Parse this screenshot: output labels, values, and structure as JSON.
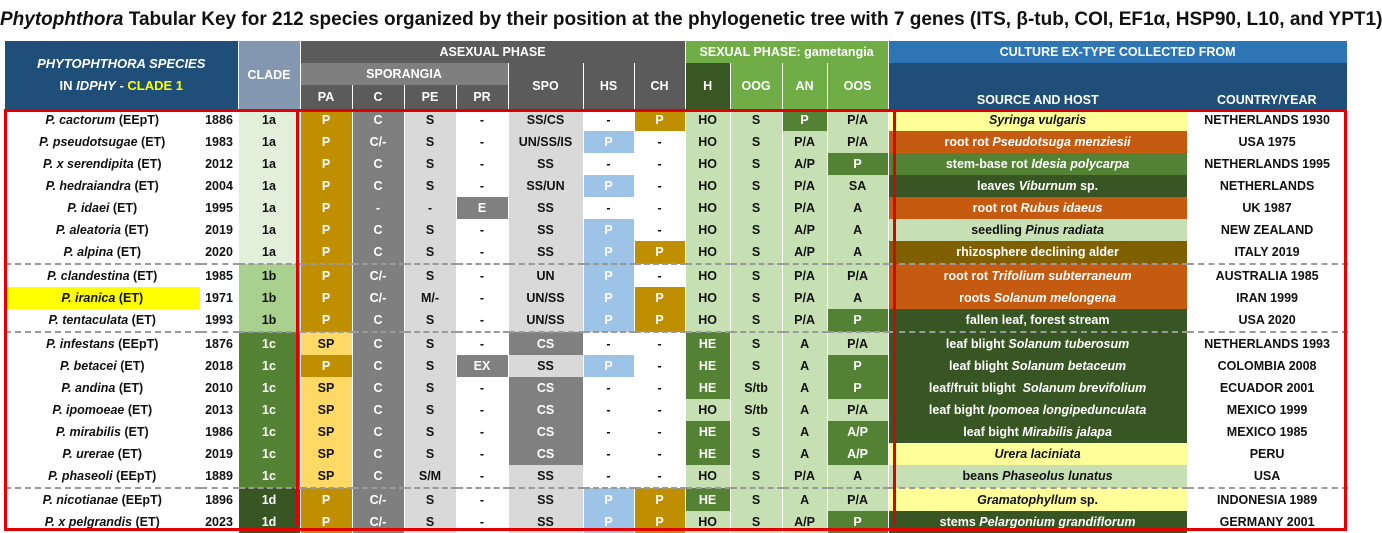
{
  "title": {
    "genus": "Phytophthora",
    "rest": " Tabular Key for 212 species organized by their position at the phylogenetic tree with 7 genes (ITS, β-tub, COI, EF1α, HSP90, L10, and YPT1)"
  },
  "header": {
    "species_line1": "PHYTOPHTHORA  SPECIES",
    "species_line2a": "IN ",
    "species_line2b": "IDPHY",
    "species_line2c": " - ",
    "species_line2d": "CLADE 1",
    "clade": "CLADE",
    "asexual": "ASEXUAL PHASE",
    "sporangia": "SPORANGIA",
    "sexual": "SEXUAL PHASE: gametangia",
    "culture": "CULTURE EX-TYPE COLLECTED FROM",
    "cols": {
      "pa": "PA",
      "c": "C",
      "pe": "PE",
      "pr": "PR",
      "spo": "SPO",
      "hs": "HS",
      "ch": "CH",
      "h": "H",
      "oog": "OOG",
      "an": "AN",
      "oos": "OOS",
      "source": "SOURCE AND HOST",
      "country": "COUNTRY/YEAR"
    }
  },
  "colors": {
    "tan": "#bf8f00",
    "lightTan": "#ffd966",
    "gray": "#7f7f7f",
    "lightGray": "#d9d9d9",
    "blue": "#9dc3e6",
    "darkGreen": "#375623",
    "midGreen": "#548235",
    "lightGreen": "#a9d08e",
    "paleGreen": "#c6e0b4",
    "orange": "#c55a11",
    "yellow": "#ffff99",
    "olive": "#7f6000",
    "highlight": "#ffff00",
    "frame": "#e00000"
  },
  "rows": [
    {
      "name": "P. cactorum",
      "tag": " (EEpT)",
      "year": "1886",
      "clade": "1a",
      "pa": "P",
      "c": "C",
      "pe": "S",
      "pr": "-",
      "spo": "SS/CS",
      "hs": "-",
      "ch": "P",
      "h": "HO",
      "oog": "S",
      "an": "P",
      "oos": "P/A",
      "src": [
        {
          "t": "Syringa vulgaris",
          "i": true
        }
      ],
      "country": "NETHERLANDS 1930"
    },
    {
      "name": "P. pseudotsugae",
      "tag": " (ET)",
      "year": "1983",
      "clade": "1a",
      "pa": "P",
      "c": "C/-",
      "pe": "S",
      "pr": "-",
      "spo": "UN/SS/IS",
      "hs": "P",
      "ch": "-",
      "h": "HO",
      "oog": "S",
      "an": "P/A",
      "oos": "P/A",
      "src": [
        {
          "t": "root rot ",
          "i": false
        },
        {
          "t": "Pseudotsuga menziesii",
          "i": true
        }
      ],
      "country": "USA 1975"
    },
    {
      "name": "P. x serendipita",
      "tag": " (ET)",
      "year": "2012",
      "clade": "1a",
      "pa": "P",
      "c": "C",
      "pe": "S",
      "pr": "-",
      "spo": "SS",
      "hs": "-",
      "ch": "-",
      "h": "HO",
      "oog": "S",
      "an": "A/P",
      "oos": "P",
      "src": [
        {
          "t": "stem-base rot ",
          "i": false
        },
        {
          "t": "Idesia polycarpa",
          "i": true
        }
      ],
      "country": "NETHERLANDS 1995"
    },
    {
      "name": "P. hedraiandra",
      "tag": " (ET)",
      "year": "2004",
      "clade": "1a",
      "pa": "P",
      "c": "C",
      "pe": "S",
      "pr": "-",
      "spo": "SS/UN",
      "hs": "P",
      "ch": "-",
      "h": "HO",
      "oog": "S",
      "an": "P/A",
      "oos": "SA",
      "src": [
        {
          "t": "leaves ",
          "i": false
        },
        {
          "t": "Viburnum",
          "i": true
        },
        {
          "t": " sp.",
          "i": false
        }
      ],
      "country": "NETHERLANDS"
    },
    {
      "name": "P. idaei",
      "tag": " (ET)",
      "year": "1995",
      "clade": "1a",
      "pa": "P",
      "c": "-",
      "pe": "-",
      "pr": "E",
      "spo": "SS",
      "hs": "-",
      "ch": "-",
      "h": "HO",
      "oog": "S",
      "an": "P/A",
      "oos": "A",
      "src": [
        {
          "t": "root rot ",
          "i": false
        },
        {
          "t": "Rubus idaeus",
          "i": true
        }
      ],
      "country": "UK 1987"
    },
    {
      "name": "P. aleatoria",
      "tag": " (ET)",
      "year": "2019",
      "clade": "1a",
      "pa": "P",
      "c": "C",
      "pe": "S",
      "pr": "-",
      "spo": "SS",
      "hs": "P",
      "ch": "-",
      "h": "HO",
      "oog": "S",
      "an": "A/P",
      "oos": "A",
      "src": [
        {
          "t": "seedling ",
          "i": false
        },
        {
          "t": "Pinus radiata",
          "i": true
        }
      ],
      "country": "NEW ZEALAND"
    },
    {
      "name": "P. alpina",
      "tag": " (ET)",
      "year": "2020",
      "clade": "1a",
      "pa": "P",
      "c": "C",
      "pe": "S",
      "pr": "-",
      "spo": "SS",
      "hs": "P",
      "ch": "P",
      "h": "HO",
      "oog": "S",
      "an": "A/P",
      "oos": "A",
      "src": [
        {
          "t": "rhizosphere declining alder",
          "i": false
        }
      ],
      "country": "ITALY 2019"
    },
    {
      "name": "P. clandestina",
      "tag": " (ET)",
      "year": "1985",
      "clade": "1b",
      "pa": "P",
      "c": "C/-",
      "pe": "S",
      "pr": "-",
      "spo": "UN",
      "hs": "P",
      "ch": "-",
      "h": "HO",
      "oog": "S",
      "an": "P/A",
      "oos": "P/A",
      "src": [
        {
          "t": "root rot ",
          "i": false
        },
        {
          "t": "Trifolium subterraneum",
          "i": true
        }
      ],
      "country": "AUSTRALIA 1985"
    },
    {
      "name": "P. iranica",
      "tag": " (ET)",
      "year": "1971",
      "clade": "1b",
      "pa": "P",
      "c": "C/-",
      "pe": "M/-",
      "pr": "-",
      "spo": "UN/SS",
      "hs": "P",
      "ch": "P",
      "h": "HO",
      "oog": "S",
      "an": "P/A",
      "oos": "A",
      "src": [
        {
          "t": "roots ",
          "i": false
        },
        {
          "t": "Solanum melongena",
          "i": true
        }
      ],
      "country": "IRAN 1999"
    },
    {
      "name": "P. tentaculata",
      "tag": " (ET)",
      "year": "1993",
      "clade": "1b",
      "pa": "P",
      "c": "C",
      "pe": "S",
      "pr": "-",
      "spo": "UN/SS",
      "hs": "P",
      "ch": "P",
      "h": "HO",
      "oog": "S",
      "an": "P/A",
      "oos": "P",
      "src": [
        {
          "t": "fallen leaf, forest stream",
          "i": false
        }
      ],
      "country": "USA 2020"
    },
    {
      "name": "P. infestans",
      "tag": " (EEpT)",
      "year": "1876",
      "clade": "1c",
      "pa": "SP",
      "c": "C",
      "pe": "S",
      "pr": "-",
      "spo": "CS",
      "hs": "-",
      "ch": "-",
      "h": "HE",
      "oog": "S",
      "an": "A",
      "oos": "P/A",
      "src": [
        {
          "t": "leaf blight ",
          "i": false
        },
        {
          "t": "Solanum tuberosum",
          "i": true
        }
      ],
      "country": "NETHERLANDS 1993"
    },
    {
      "name": "P. betacei",
      "tag": " (ET)",
      "year": "2018",
      "clade": "1c",
      "pa": "P",
      "c": "C",
      "pe": "S",
      "pr": "EX",
      "spo": "SS",
      "hs": "P",
      "ch": "-",
      "h": "HE",
      "oog": "S",
      "an": "A",
      "oos": "P",
      "src": [
        {
          "t": "leaf blight ",
          "i": false
        },
        {
          "t": "Solanum betaceum",
          "i": true
        }
      ],
      "country": "COLOMBIA 2008"
    },
    {
      "name": "P. andina",
      "tag": " (ET)",
      "year": "2010",
      "clade": "1c",
      "pa": "SP",
      "c": "C",
      "pe": "S",
      "pr": "-",
      "spo": "CS",
      "hs": "-",
      "ch": "-",
      "h": "HE",
      "oog": "S/tb",
      "an": "A",
      "oos": "P",
      "src": [
        {
          "t": "leaf/fruit blight  ",
          "i": false
        },
        {
          "t": "Solanum brevifolium",
          "i": true
        }
      ],
      "country": "ECUADOR 2001"
    },
    {
      "name": "P. ipomoeae",
      "tag": " (ET)",
      "year": "2013",
      "clade": "1c",
      "pa": "SP",
      "c": "C",
      "pe": "S",
      "pr": "-",
      "spo": "CS",
      "hs": "-",
      "ch": "-",
      "h": "HO",
      "oog": "S/tb",
      "an": "A",
      "oos": "P/A",
      "src": [
        {
          "t": "leaf bight ",
          "i": false
        },
        {
          "t": "Ipomoea longipedunculata",
          "i": true
        }
      ],
      "country": "MEXICO 1999"
    },
    {
      "name": "P. mirabilis",
      "tag": " (ET)",
      "year": "1986",
      "clade": "1c",
      "pa": "SP",
      "c": "C",
      "pe": "S",
      "pr": "-",
      "spo": "CS",
      "hs": "-",
      "ch": "-",
      "h": "HE",
      "oog": "S",
      "an": "A",
      "oos": "A/P",
      "src": [
        {
          "t": "leaf bight ",
          "i": false
        },
        {
          "t": "Mirabilis jalapa",
          "i": true
        }
      ],
      "country": "MEXICO 1985"
    },
    {
      "name": "P. urerae",
      "tag": " (ET)",
      "year": "2019",
      "clade": "1c",
      "pa": "SP",
      "c": "C",
      "pe": "S",
      "pr": "-",
      "spo": "CS",
      "hs": "-",
      "ch": "-",
      "h": "HE",
      "oog": "S",
      "an": "A",
      "oos": "A/P",
      "src": [
        {
          "t": "Urera laciniata",
          "i": true
        }
      ],
      "country": "PERU"
    },
    {
      "name": "P. phaseoli",
      "tag": " (EEpT)",
      "year": "1889",
      "clade": "1c",
      "pa": "SP",
      "c": "C",
      "pe": "S/M",
      "pr": "-",
      "spo": "SS",
      "hs": "-",
      "ch": "-",
      "h": "HO",
      "oog": "S",
      "an": "P/A",
      "oos": "A",
      "src": [
        {
          "t": "beans ",
          "i": false
        },
        {
          "t": "Phaseolus lunatus",
          "i": true
        }
      ],
      "country": "USA"
    },
    {
      "name": "P. nicotianae",
      "tag": " (EEpT)",
      "year": "1896",
      "clade": "1d",
      "pa": "P",
      "c": "C/-",
      "pe": "S",
      "pr": "-",
      "spo": "SS",
      "hs": "P",
      "ch": "P",
      "h": "HE",
      "oog": "S",
      "an": "A",
      "oos": "P/A",
      "src": [
        {
          "t": "Gramatophyllum",
          "i": true
        },
        {
          "t": " sp.",
          "i": false
        }
      ],
      "country": "INDONESIA 1989"
    },
    {
      "name": "P. x pelgrandis",
      "tag": " (ET)",
      "year": "2023",
      "clade": "1d",
      "pa": "P",
      "c": "C/-",
      "pe": "S",
      "pr": "-",
      "spo": "SS",
      "hs": "P",
      "ch": "P",
      "h": "HO",
      "oog": "S",
      "an": "A/P",
      "oos": "P",
      "src": [
        {
          "t": "stems ",
          "i": false
        },
        {
          "t": "Pelargonium grandiflorum",
          "i": true
        }
      ],
      "country": "GERMANY 2001"
    }
  ]
}
